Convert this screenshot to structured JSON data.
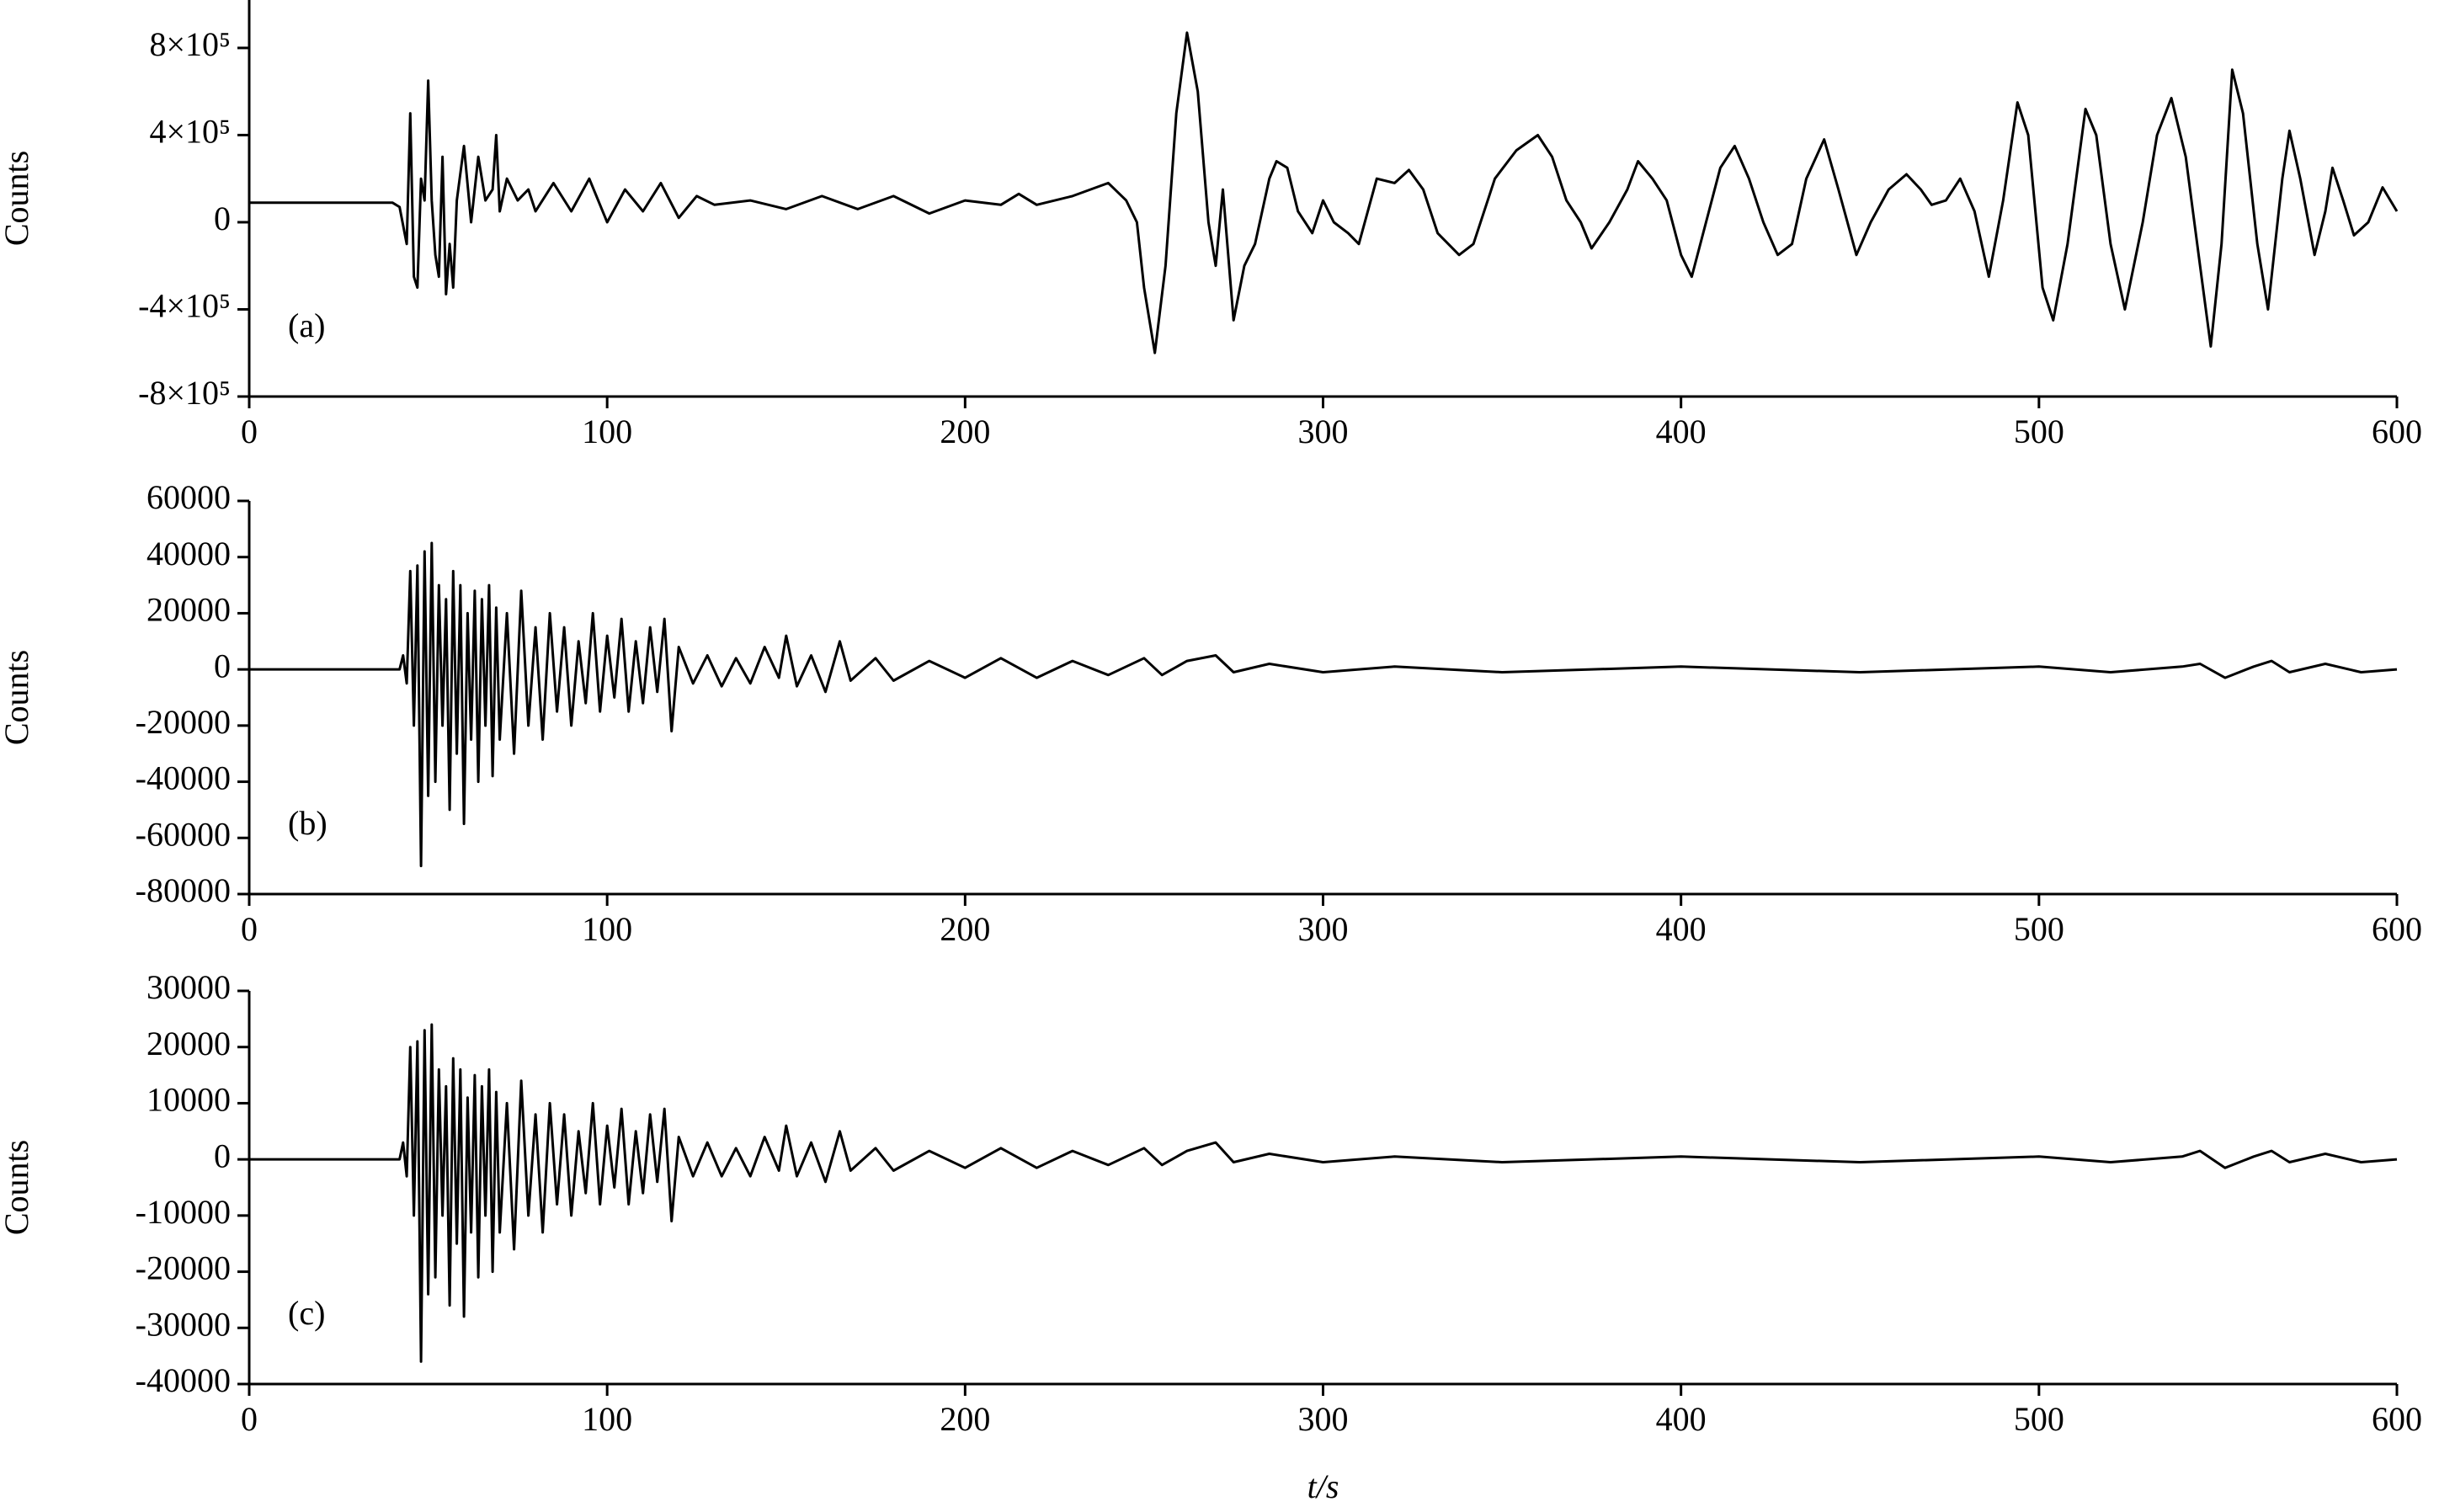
{
  "chart_data": [
    {
      "type": "line",
      "ylabel": "Counts",
      "annotation": "(a)",
      "xlim": [
        0,
        600
      ],
      "xticks": [
        0,
        100,
        200,
        300,
        400,
        500,
        600
      ],
      "ylim": [
        -800000,
        1020000
      ],
      "yticks": [
        {
          "value": 800000,
          "label": "8×10⁵"
        },
        {
          "value": 400000,
          "label": "4×10⁵"
        },
        0,
        {
          "value": -400000,
          "label": "-4×10⁵"
        },
        {
          "value": -800000,
          "label": "-8×10⁵"
        }
      ],
      "series": [
        {
          "color": "#000000",
          "x": [
            0,
            40,
            42,
            44,
            45,
            46,
            47,
            48,
            49,
            50,
            51,
            52,
            53,
            54,
            55,
            56,
            57,
            58,
            60,
            62,
            64,
            66,
            68,
            69,
            70,
            72,
            75,
            78,
            80,
            85,
            90,
            95,
            100,
            105,
            110,
            115,
            120,
            125,
            130,
            140,
            150,
            160,
            170,
            180,
            190,
            200,
            210,
            215,
            220,
            230,
            240,
            245,
            248,
            250,
            253,
            256,
            259,
            262,
            265,
            268,
            270,
            272,
            275,
            278,
            281,
            285,
            287,
            290,
            293,
            297,
            300,
            303,
            307,
            310,
            315,
            320,
            324,
            328,
            332,
            338,
            342,
            348,
            354,
            360,
            364,
            368,
            372,
            375,
            380,
            385,
            388,
            392,
            396,
            400,
            403,
            407,
            411,
            415,
            419,
            423,
            427,
            431,
            435,
            440,
            444,
            449,
            453,
            458,
            463,
            467,
            470,
            474,
            478,
            482,
            486,
            490,
            494,
            497,
            501,
            504,
            508,
            513,
            516,
            520,
            524,
            529,
            533,
            537,
            541,
            545,
            548,
            551,
            554,
            557,
            561,
            564,
            568,
            570,
            573,
            577,
            580,
            582,
            585,
            588,
            592,
            596,
            600
          ],
          "values": [
            90000,
            90000,
            70000,
            -100000,
            500000,
            -250000,
            -300000,
            200000,
            100000,
            650000,
            100000,
            -150000,
            -250000,
            300000,
            -330000,
            -100000,
            -300000,
            100000,
            350000,
            0,
            300000,
            100000,
            150000,
            400000,
            50000,
            200000,
            100000,
            150000,
            50000,
            180000,
            50000,
            200000,
            0,
            150000,
            50000,
            180000,
            20000,
            120000,
            80000,
            100000,
            60000,
            120000,
            60000,
            120000,
            40000,
            100000,
            80000,
            130000,
            80000,
            120000,
            180000,
            100000,
            0,
            -300000,
            -600000,
            -200000,
            500000,
            870000,
            600000,
            0,
            -200000,
            150000,
            -450000,
            -200000,
            -100000,
            200000,
            280000,
            250000,
            50000,
            -50000,
            100000,
            0,
            -50000,
            -100000,
            200000,
            180000,
            240000,
            150000,
            -50000,
            -150000,
            -100000,
            200000,
            330000,
            400000,
            300000,
            100000,
            0,
            -120000,
            0,
            150000,
            280000,
            200000,
            100000,
            -150000,
            -250000,
            0,
            250000,
            350000,
            200000,
            0,
            -150000,
            -100000,
            200000,
            380000,
            150000,
            -150000,
            0,
            150000,
            220000,
            150000,
            80000,
            100000,
            200000,
            50000,
            -250000,
            100000,
            550000,
            400000,
            -300000,
            -450000,
            -100000,
            520000,
            400000,
            -100000,
            -400000,
            0,
            400000,
            570000,
            300000,
            -200000,
            -570000,
            -100000,
            700000,
            500000,
            -100000,
            -400000,
            200000,
            420000,
            200000,
            -150000,
            50000,
            250000,
            100000,
            -60000,
            0,
            160000,
            50000
          ]
        }
      ]
    },
    {
      "type": "line",
      "ylabel": "Counts",
      "annotation": "(b)",
      "xlim": [
        0,
        600
      ],
      "xticks": [
        0,
        100,
        200,
        300,
        400,
        500,
        600
      ],
      "ylim": [
        -80000,
        60000
      ],
      "yticks": [
        60000,
        40000,
        20000,
        0,
        -20000,
        -40000,
        -60000,
        -80000
      ],
      "series": [
        {
          "color": "#000000",
          "x": [
            0,
            42,
            43,
            44,
            45,
            46,
            47,
            48,
            49,
            50,
            51,
            52,
            53,
            54,
            55,
            56,
            57,
            58,
            59,
            60,
            61,
            62,
            63,
            64,
            65,
            66,
            67,
            68,
            69,
            70,
            72,
            74,
            76,
            78,
            80,
            82,
            84,
            86,
            88,
            90,
            92,
            94,
            96,
            98,
            100,
            102,
            104,
            106,
            108,
            110,
            112,
            114,
            116,
            118,
            120,
            124,
            128,
            132,
            136,
            140,
            144,
            148,
            150,
            153,
            157,
            161,
            165,
            168,
            175,
            180,
            190,
            200,
            210,
            220,
            230,
            240,
            250,
            255,
            262,
            270,
            275,
            285,
            300,
            320,
            350,
            400,
            450,
            500,
            520,
            540,
            545,
            552,
            560,
            565,
            570,
            580,
            590,
            600
          ],
          "values": [
            0,
            0,
            5000,
            -5000,
            35000,
            -20000,
            37000,
            -70000,
            42000,
            -45000,
            45000,
            -40000,
            30000,
            -20000,
            25000,
            -50000,
            35000,
            -30000,
            30000,
            -55000,
            20000,
            -25000,
            28000,
            -40000,
            25000,
            -20000,
            30000,
            -38000,
            22000,
            -25000,
            20000,
            -30000,
            28000,
            -20000,
            15000,
            -25000,
            20000,
            -15000,
            15000,
            -20000,
            10000,
            -12000,
            20000,
            -15000,
            12000,
            -10000,
            18000,
            -15000,
            10000,
            -12000,
            15000,
            -8000,
            18000,
            -22000,
            8000,
            -5000,
            5000,
            -6000,
            4000,
            -5000,
            8000,
            -3000,
            12000,
            -6000,
            5000,
            -8000,
            10000,
            -4000,
            4000,
            -4000,
            3000,
            -3000,
            4000,
            -3000,
            3000,
            -2000,
            4000,
            -2000,
            3000,
            5000,
            -1000,
            2000,
            -1000,
            1000,
            -1000,
            1000,
            -1000,
            1000,
            -1000,
            1000,
            2000,
            -3000,
            1000,
            3000,
            -1000,
            2000,
            -1000,
            0
          ]
        }
      ]
    },
    {
      "type": "line",
      "ylabel": "Counts",
      "annotation": "(c)",
      "xlabel": "t/s",
      "xlim": [
        0,
        600
      ],
      "xticks": [
        0,
        100,
        200,
        300,
        400,
        500,
        600
      ],
      "ylim": [
        -40000,
        30000
      ],
      "yticks": [
        30000,
        20000,
        10000,
        0,
        -10000,
        -20000,
        -30000,
        -40000
      ],
      "series": [
        {
          "color": "#000000",
          "x": [
            0,
            42,
            43,
            44,
            45,
            46,
            47,
            48,
            49,
            50,
            51,
            52,
            53,
            54,
            55,
            56,
            57,
            58,
            59,
            60,
            61,
            62,
            63,
            64,
            65,
            66,
            67,
            68,
            69,
            70,
            72,
            74,
            76,
            78,
            80,
            82,
            84,
            86,
            88,
            90,
            92,
            94,
            96,
            98,
            100,
            102,
            104,
            106,
            108,
            110,
            112,
            114,
            116,
            118,
            120,
            124,
            128,
            132,
            136,
            140,
            144,
            148,
            150,
            153,
            157,
            161,
            165,
            168,
            175,
            180,
            190,
            200,
            210,
            220,
            230,
            240,
            250,
            255,
            262,
            270,
            275,
            285,
            300,
            320,
            350,
            400,
            450,
            500,
            520,
            540,
            545,
            552,
            560,
            565,
            570,
            580,
            590,
            600
          ],
          "values": [
            0,
            0,
            3000,
            -3000,
            20000,
            -10000,
            21000,
            -36000,
            23000,
            -24000,
            24000,
            -21000,
            16000,
            -10000,
            13000,
            -26000,
            18000,
            -15000,
            16000,
            -28000,
            11000,
            -13000,
            15000,
            -21000,
            13000,
            -10000,
            16000,
            -20000,
            12000,
            -13000,
            10000,
            -16000,
            14000,
            -10000,
            8000,
            -13000,
            10000,
            -8000,
            8000,
            -10000,
            5000,
            -6000,
            10000,
            -8000,
            6000,
            -5000,
            9000,
            -8000,
            5000,
            -6000,
            8000,
            -4000,
            9000,
            -11000,
            4000,
            -3000,
            3000,
            -3000,
            2000,
            -3000,
            4000,
            -2000,
            6000,
            -3000,
            3000,
            -4000,
            5000,
            -2000,
            2000,
            -2000,
            1500,
            -1500,
            2000,
            -1500,
            1500,
            -1000,
            2000,
            -1000,
            1500,
            3000,
            -500,
            1000,
            -500,
            500,
            -500,
            500,
            -500,
            500,
            -500,
            500,
            1500,
            -1500,
            500,
            1500,
            -500,
            1000,
            -500,
            0
          ]
        }
      ]
    }
  ]
}
